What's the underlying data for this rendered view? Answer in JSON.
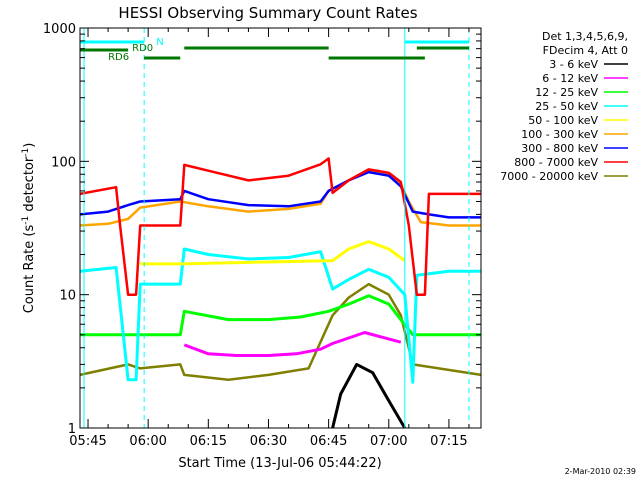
{
  "chart_data": {
    "type": "line",
    "title": "HESSI Observing Summary Count Rates",
    "xlabel": "Start Time (13-Jul-06 05:44:22)",
    "ylabel": "Count Rate (s⁻¹ detector⁻¹)",
    "ylabel_main": "Count Rate (s",
    "ylabel_sup1": "-1",
    "ylabel_mid": " detector",
    "ylabel_sup2": "-1",
    "ylabel_end": ")",
    "y_scale": "log",
    "ylim": [
      1,
      1000
    ],
    "xlim": [
      "05:43",
      "07:23"
    ],
    "x_ticks": [
      "05:45",
      "06:00",
      "06:15",
      "06:30",
      "06:45",
      "07:00",
      "07:15"
    ],
    "y_ticks": [
      "1",
      "10",
      "100",
      "1000"
    ],
    "legend_header": [
      "Det 1,3,4,5,6,9,",
      "FDecim 4, Att 0"
    ],
    "footer_date": "2-Mar-2010 02:39",
    "flags": {
      "night": "N",
      "rd0": "RD0",
      "rd6": "RD6"
    },
    "series": [
      {
        "name": "3 - 6 keV",
        "color": "#000000",
        "points": [
          [
            "06:46",
            1
          ],
          [
            "06:48",
            1.8
          ],
          [
            "06:52",
            3.0
          ],
          [
            "06:56",
            2.6
          ],
          [
            "07:00",
            1.6
          ],
          [
            "07:04",
            1
          ]
        ]
      },
      {
        "name": "6 - 12 keV",
        "color": "#ff00ff",
        "points": [
          [
            "06:09",
            4.2
          ],
          [
            "06:15",
            3.6
          ],
          [
            "06:22",
            3.5
          ],
          [
            "06:30",
            3.5
          ],
          [
            "06:37",
            3.6
          ],
          [
            "06:43",
            3.9
          ],
          [
            "06:46",
            4.3
          ],
          [
            "06:54",
            5.2
          ],
          [
            "07:03",
            4.4
          ]
        ]
      },
      {
        "name": "12 - 25 keV",
        "color": "#00ff00",
        "points": [
          [
            "05:43",
            5.0
          ],
          [
            "05:55",
            5.0
          ],
          [
            "05:58",
            5.0
          ],
          [
            "06:08",
            5.0
          ],
          [
            "06:09",
            7.5
          ],
          [
            "06:20",
            6.5
          ],
          [
            "06:30",
            6.5
          ],
          [
            "06:38",
            6.8
          ],
          [
            "06:45",
            7.5
          ],
          [
            "06:50",
            8.5
          ],
          [
            "06:55",
            9.8
          ],
          [
            "07:00",
            8.5
          ],
          [
            "07:03",
            6.5
          ],
          [
            "07:06",
            5.0
          ],
          [
            "07:23",
            5.0
          ]
        ]
      },
      {
        "name": "25 - 50 keV",
        "color": "#00ffff",
        "points": [
          [
            "05:43",
            15
          ],
          [
            "05:52",
            16
          ],
          [
            "05:55",
            2.3
          ],
          [
            "05:57",
            2.3
          ],
          [
            "05:58",
            12
          ],
          [
            "06:08",
            12
          ],
          [
            "06:09",
            22
          ],
          [
            "06:15",
            20
          ],
          [
            "06:25",
            18.5
          ],
          [
            "06:35",
            19
          ],
          [
            "06:43",
            21
          ],
          [
            "06:46",
            11
          ],
          [
            "06:50",
            13
          ],
          [
            "06:55",
            15.5
          ],
          [
            "07:00",
            13.5
          ],
          [
            "07:04",
            10
          ],
          [
            "07:06",
            2.2
          ],
          [
            "07:07",
            14
          ],
          [
            "07:15",
            15
          ],
          [
            "07:23",
            15
          ]
        ]
      },
      {
        "name": "50 - 100 keV",
        "color": "#ffff00",
        "points": [
          [
            "05:58",
            17
          ],
          [
            "06:08",
            17
          ],
          [
            "06:46",
            18
          ],
          [
            "06:50",
            22
          ],
          [
            "06:55",
            25
          ],
          [
            "07:00",
            22
          ],
          [
            "07:04",
            18
          ]
        ]
      },
      {
        "name": "100 - 300 keV",
        "color": "#ffa500",
        "points": [
          [
            "05:43",
            33
          ],
          [
            "05:50",
            34
          ],
          [
            "05:55",
            37
          ],
          [
            "05:58",
            45
          ],
          [
            "06:08",
            50
          ],
          [
            "06:15",
            46
          ],
          [
            "06:25",
            42
          ],
          [
            "06:35",
            44
          ],
          [
            "06:43",
            48
          ],
          [
            "06:45",
            60
          ],
          [
            "06:50",
            72
          ],
          [
            "06:55",
            85
          ],
          [
            "07:00",
            80
          ],
          [
            "07:03",
            68
          ],
          [
            "07:05",
            50
          ],
          [
            "07:08",
            35
          ],
          [
            "07:15",
            33
          ],
          [
            "07:23",
            33
          ]
        ]
      },
      {
        "name": "300 - 800 keV",
        "color": "#0000ff",
        "points": [
          [
            "05:43",
            40
          ],
          [
            "05:50",
            42
          ],
          [
            "05:55",
            47
          ],
          [
            "05:58",
            50
          ],
          [
            "06:08",
            52
          ],
          [
            "06:09",
            60
          ],
          [
            "06:15",
            52
          ],
          [
            "06:25",
            47
          ],
          [
            "06:35",
            46
          ],
          [
            "06:43",
            50
          ],
          [
            "06:45",
            60
          ],
          [
            "06:50",
            72
          ],
          [
            "06:55",
            83
          ],
          [
            "07:00",
            78
          ],
          [
            "07:03",
            65
          ],
          [
            "07:06",
            42
          ],
          [
            "07:10",
            40
          ],
          [
            "07:15",
            38
          ],
          [
            "07:23",
            38
          ]
        ]
      },
      {
        "name": "800 - 7000 keV",
        "color": "#ff0000",
        "points": [
          [
            "05:43",
            57
          ],
          [
            "05:52",
            64
          ],
          [
            "05:53",
            33
          ],
          [
            "05:55",
            10
          ],
          [
            "05:57",
            10
          ],
          [
            "05:58",
            33
          ],
          [
            "06:08",
            33
          ],
          [
            "06:09",
            94
          ],
          [
            "06:15",
            85
          ],
          [
            "06:25",
            72
          ],
          [
            "06:35",
            78
          ],
          [
            "06:43",
            95
          ],
          [
            "06:45",
            105
          ],
          [
            "06:46",
            58
          ],
          [
            "06:50",
            72
          ],
          [
            "06:55",
            87
          ],
          [
            "07:00",
            82
          ],
          [
            "07:03",
            70
          ],
          [
            "07:05",
            33
          ],
          [
            "07:07",
            10
          ],
          [
            "07:09",
            10
          ],
          [
            "07:10",
            57
          ],
          [
            "07:23",
            57
          ]
        ]
      },
      {
        "name": "7000 - 20000 keV",
        "color": "#808000",
        "points": [
          [
            "05:43",
            2.5
          ],
          [
            "05:55",
            3.0
          ],
          [
            "05:58",
            2.8
          ],
          [
            "06:08",
            3.0
          ],
          [
            "06:09",
            2.5
          ],
          [
            "06:20",
            2.3
          ],
          [
            "06:30",
            2.5
          ],
          [
            "06:40",
            2.8
          ],
          [
            "06:46",
            7
          ],
          [
            "06:50",
            9.5
          ],
          [
            "06:55",
            12
          ],
          [
            "07:00",
            10
          ],
          [
            "07:03",
            7
          ],
          [
            "07:06",
            3.0
          ],
          [
            "07:23",
            2.5
          ]
        ]
      }
    ]
  }
}
